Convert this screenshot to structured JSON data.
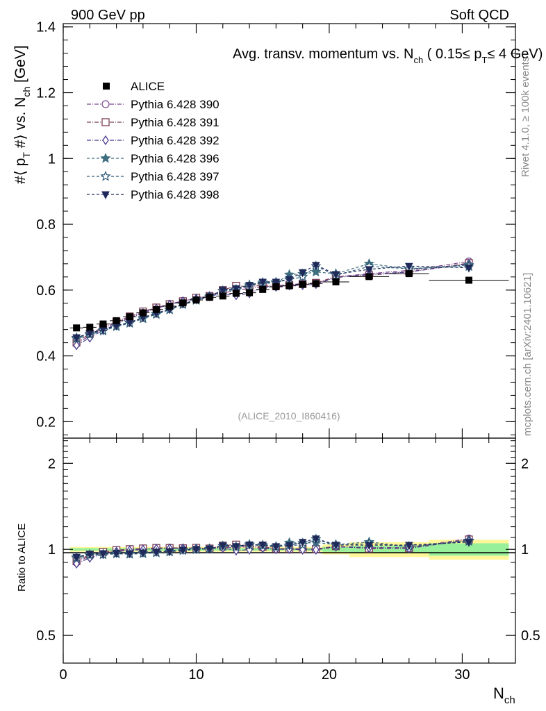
{
  "header": {
    "left": "900 GeV pp",
    "right": "Soft QCD"
  },
  "side_labels": {
    "rivet": "Rivet 4.1.0, ≥ 100k events",
    "mcplots": "mcplots.cern.ch [arXiv:2401.10621]"
  },
  "chart_data": {
    "type": "scatter",
    "title": "Avg. transv. momentum vs. N_ch ( 0.15≤ p_T≤ 4 GeV)",
    "title_parts": {
      "a": "Avg. transv. momentum vs. N",
      "sub1": "ch",
      "b": " ( 0.15≤ p",
      "sub2": "T",
      "c": "≤ 4 GeV)"
    },
    "ylabel": "#⟨ p_T #⟩ vs. N_ch [GeV]",
    "ylabel_parts": {
      "a": "#⟨ p",
      "sub1": "T",
      "b": " #⟩ vs. N",
      "sub2": "ch",
      "c": " [GeV]"
    },
    "xlabel": "N_ch",
    "xlabel_parts": {
      "a": "N",
      "sub": "ch"
    },
    "analysis_id": "(ALICE_2010_I860416)",
    "xlim": [
      0,
      34
    ],
    "ylim": [
      0.15,
      1.41
    ],
    "xticks": [
      0,
      10,
      20,
      30
    ],
    "yticks": [
      0.2,
      0.4,
      0.6,
      0.8,
      1,
      1.2,
      1.4
    ],
    "ytick_labels": [
      "0.2",
      "0.4",
      "0.6",
      "0.8",
      "1",
      "1.2",
      "1.4"
    ],
    "data": {
      "name": "ALICE",
      "x": [
        1,
        2,
        3,
        4,
        5,
        6,
        7,
        8,
        9,
        10,
        11,
        12,
        13,
        14,
        15,
        16,
        17,
        18,
        19,
        20.5,
        23,
        26,
        30.5
      ],
      "y": [
        0.485,
        0.487,
        0.497,
        0.507,
        0.519,
        0.531,
        0.541,
        0.551,
        0.561,
        0.57,
        0.578,
        0.582,
        0.59,
        0.592,
        0.602,
        0.61,
        0.613,
        0.617,
        0.62,
        0.625,
        0.641,
        0.65,
        0.63
      ],
      "xerr": [
        0.5,
        0.5,
        0.5,
        0.5,
        0.5,
        0.5,
        0.5,
        0.5,
        0.5,
        0.5,
        0.5,
        0.5,
        0.5,
        0.5,
        0.5,
        0.5,
        0.5,
        0.5,
        0.5,
        1.0,
        1.5,
        1.5,
        3.0
      ],
      "stat_rel": [
        0.01,
        0.01,
        0.01,
        0.01,
        0.01,
        0.01,
        0.01,
        0.01,
        0.01,
        0.01,
        0.01,
        0.01,
        0.01,
        0.01,
        0.01,
        0.01,
        0.01,
        0.01,
        0.01,
        0.02,
        0.03,
        0.03,
        0.05
      ],
      "tot_rel": [
        0.02,
        0.02,
        0.02,
        0.02,
        0.02,
        0.02,
        0.02,
        0.02,
        0.02,
        0.02,
        0.02,
        0.02,
        0.02,
        0.02,
        0.02,
        0.02,
        0.02,
        0.02,
        0.02,
        0.04,
        0.06,
        0.06,
        0.08
      ]
    },
    "series": [
      {
        "name": "Pythia 6.428 390",
        "color": "#7b4a8e",
        "marker": "circle",
        "dash": "6,2,1,2",
        "x": [
          1,
          2,
          3,
          4,
          5,
          6,
          7,
          8,
          9,
          10,
          11,
          12,
          13,
          14,
          15,
          16,
          17,
          18,
          19,
          20.5,
          23,
          26,
          30.5
        ],
        "y": [
          0.436,
          0.462,
          0.483,
          0.502,
          0.518,
          0.533,
          0.546,
          0.558,
          0.567,
          0.575,
          0.582,
          0.591,
          0.6,
          0.605,
          0.61,
          0.612,
          0.616,
          0.62,
          0.62,
          0.64,
          0.65,
          0.66,
          0.687
        ]
      },
      {
        "name": "Pythia 6.428 391",
        "color": "#7a3e55",
        "marker": "square",
        "dash": "6,2,1,2",
        "x": [
          1,
          2,
          3,
          4,
          5,
          6,
          7,
          8,
          9,
          10,
          11,
          12,
          13,
          14,
          15,
          16,
          17,
          18,
          19,
          20.5,
          23,
          26,
          30.5
        ],
        "y": [
          0.441,
          0.467,
          0.487,
          0.504,
          0.52,
          0.535,
          0.547,
          0.557,
          0.566,
          0.577,
          0.582,
          0.6,
          0.613,
          0.61,
          0.615,
          0.614,
          0.616,
          0.619,
          0.622,
          0.641,
          0.645,
          0.656,
          0.682
        ]
      },
      {
        "name": "Pythia 6.428 392",
        "color": "#4b3a8c",
        "marker": "diamond",
        "dash": "6,2,1,2",
        "x": [
          1,
          2,
          3,
          4,
          5,
          6,
          7,
          8,
          9,
          10,
          11,
          12,
          13,
          14,
          15,
          16,
          17,
          18,
          19,
          20.5,
          23,
          26,
          30.5
        ],
        "y": [
          0.432,
          0.455,
          0.478,
          0.498,
          0.515,
          0.53,
          0.544,
          0.556,
          0.566,
          0.574,
          0.582,
          0.589,
          0.584,
          0.59,
          0.608,
          0.61,
          0.614,
          0.615,
          0.618,
          0.638,
          0.648,
          0.655,
          0.68
        ]
      },
      {
        "name": "Pythia 6.428 396",
        "color": "#3f6e80",
        "marker": "star",
        "dash": "4,3",
        "x": [
          1,
          2,
          3,
          4,
          5,
          6,
          7,
          8,
          9,
          10,
          11,
          12,
          13,
          14,
          15,
          16,
          17,
          18,
          19,
          20.5,
          23,
          26,
          30.5
        ],
        "y": [
          0.452,
          0.464,
          0.476,
          0.489,
          0.499,
          0.513,
          0.526,
          0.54,
          0.556,
          0.569,
          0.58,
          0.597,
          0.601,
          0.616,
          0.62,
          0.622,
          0.647,
          0.649,
          0.655,
          0.65,
          0.68,
          0.665,
          0.676
        ]
      },
      {
        "name": "Pythia 6.428 397",
        "color": "#2f5a78",
        "marker": "star-open",
        "dash": "4,3",
        "x": [
          1,
          2,
          3,
          4,
          5,
          6,
          7,
          8,
          9,
          10,
          11,
          12,
          13,
          14,
          15,
          16,
          17,
          18,
          19,
          20.5,
          23,
          26,
          30.5
        ],
        "y": [
          0.455,
          0.467,
          0.478,
          0.491,
          0.501,
          0.515,
          0.528,
          0.541,
          0.557,
          0.57,
          0.58,
          0.598,
          0.602,
          0.612,
          0.623,
          0.624,
          0.632,
          0.64,
          0.673,
          0.645,
          0.672,
          0.665,
          0.672
        ]
      },
      {
        "name": "Pythia 6.428 398",
        "color": "#1f2a5a",
        "marker": "triangle-down",
        "dash": "4,3",
        "x": [
          1,
          2,
          3,
          4,
          5,
          6,
          7,
          8,
          9,
          10,
          11,
          12,
          13,
          14,
          15,
          16,
          17,
          18,
          19,
          20.5,
          23,
          26,
          30.5
        ],
        "y": [
          0.456,
          0.469,
          0.481,
          0.492,
          0.502,
          0.517,
          0.53,
          0.542,
          0.558,
          0.571,
          0.581,
          0.6,
          0.605,
          0.615,
          0.625,
          0.625,
          0.633,
          0.654,
          0.676,
          0.648,
          0.663,
          0.673,
          0.668
        ]
      }
    ],
    "ratio": {
      "ylabel": "Ratio to ALICE",
      "ylim": [
        0.4,
        2.45
      ],
      "scale": "log",
      "yticks": [
        0.5,
        1,
        2
      ],
      "ytick_labels": [
        "0.5",
        "1",
        "2"
      ]
    }
  }
}
